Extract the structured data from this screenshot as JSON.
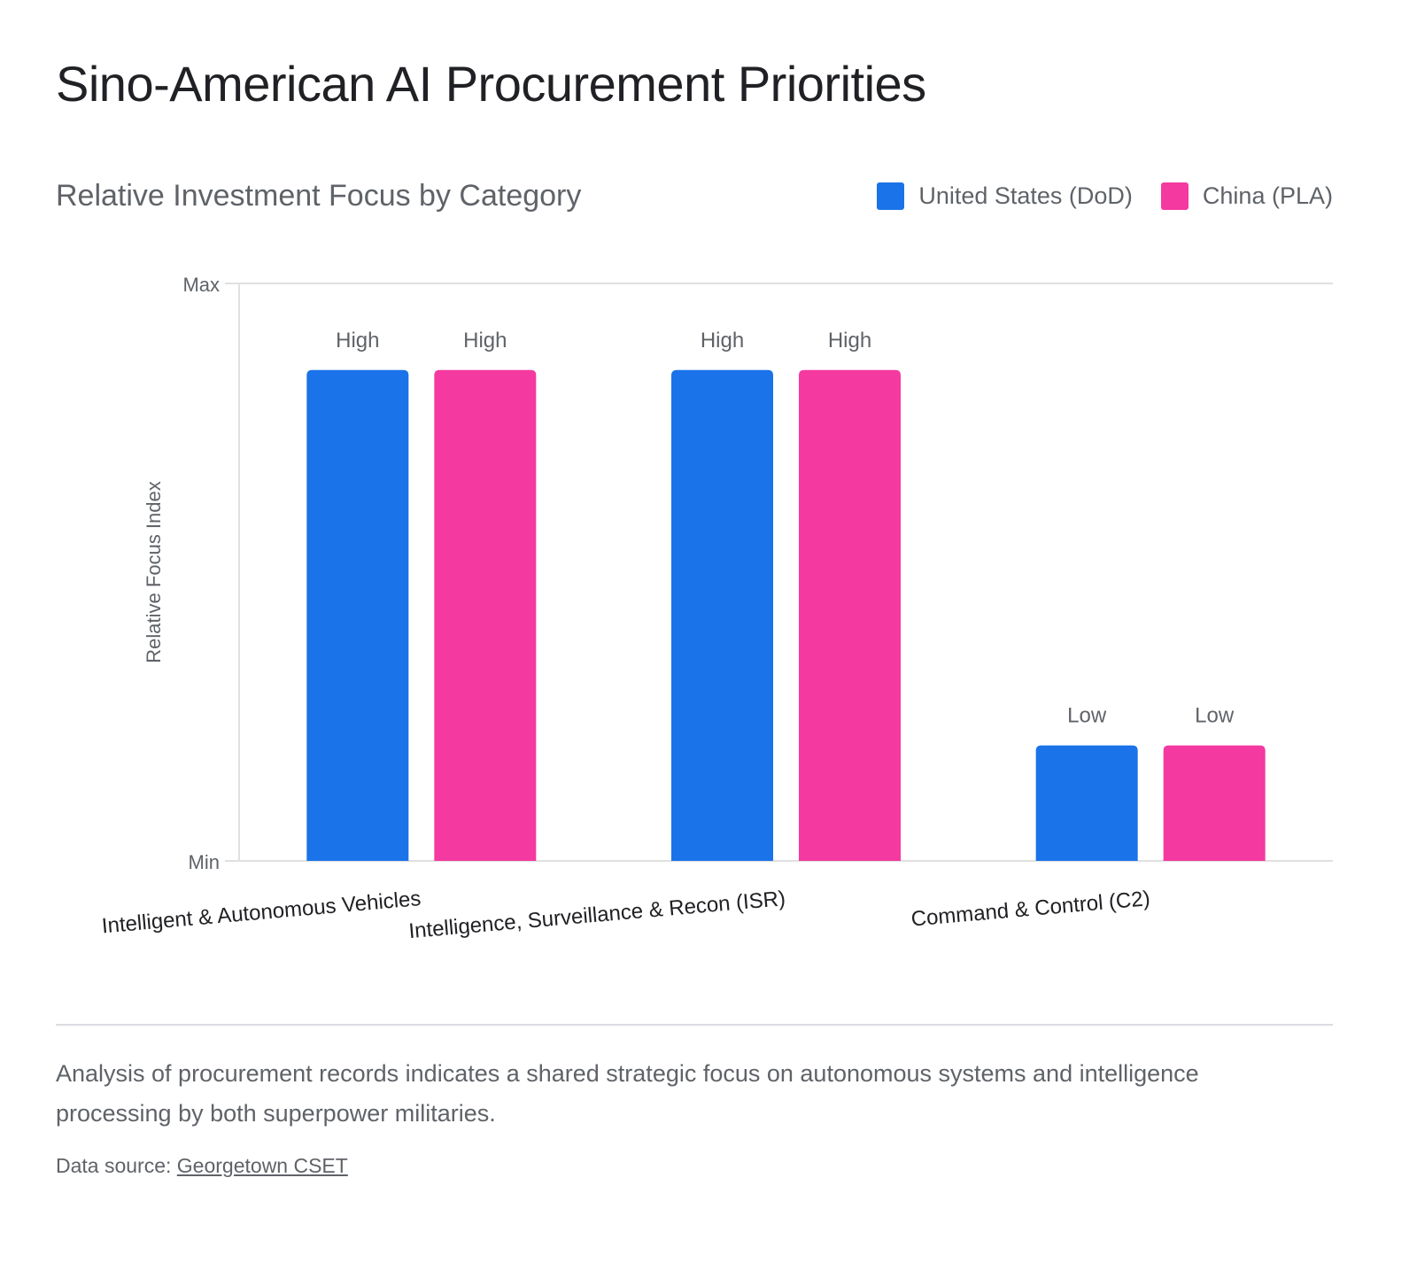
{
  "title": "Sino-American AI Procurement Priorities",
  "chart_data": {
    "type": "bar",
    "subtitle": "Relative Investment Focus by Category",
    "ylabel": "Relative Focus Index",
    "ytick_labels": [
      "Min",
      "Max"
    ],
    "ylim": [
      0,
      1
    ],
    "grid": false,
    "legend_position": "top-right",
    "categories": [
      "Intelligent & Autonomous Vehicles",
      "Intelligence, Surveillance & Recon (ISR)",
      "Command & Control (C2)"
    ],
    "series": [
      {
        "name": "United States (DoD)",
        "color": "#1a73e8",
        "values": [
          0.85,
          0.85,
          0.2
        ],
        "labels": [
          "High",
          "High",
          "Low"
        ]
      },
      {
        "name": "China (PLA)",
        "color": "#f439a0",
        "values": [
          0.85,
          0.85,
          0.2
        ],
        "labels": [
          "High",
          "High",
          "Low"
        ]
      }
    ]
  },
  "caption": "Analysis of procurement records indicates a shared strategic focus on autonomous systems and intelligence processing by both superpower militaries.",
  "source": {
    "prefix": "Data source: ",
    "link": "Georgetown CSET"
  }
}
